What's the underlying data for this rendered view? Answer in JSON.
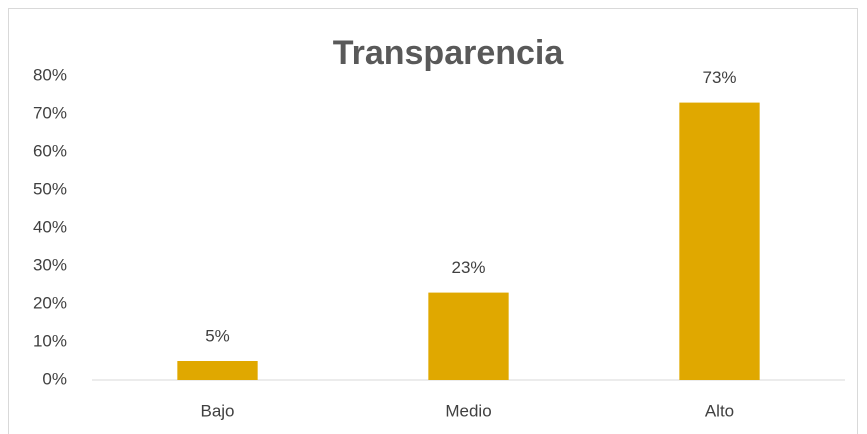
{
  "chart_data": {
    "type": "bar",
    "title": "Transparencia",
    "categories": [
      "Bajo",
      "Medio",
      "Alto"
    ],
    "values": [
      5,
      23,
      73
    ],
    "value_labels": [
      "5%",
      "23%",
      "73%"
    ],
    "color": "#e0a800",
    "ylim": [
      0,
      80
    ],
    "yticks": [
      {
        "value": 0,
        "label": "0%"
      },
      {
        "value": 10,
        "label": "10%"
      },
      {
        "value": 20,
        "label": "20%"
      },
      {
        "value": 30,
        "label": "30%"
      },
      {
        "value": 40,
        "label": "40%"
      },
      {
        "value": 50,
        "label": "50%"
      },
      {
        "value": 60,
        "label": "60%"
      },
      {
        "value": 70,
        "label": "70%"
      },
      {
        "value": 80,
        "label": "80%"
      }
    ],
    "grid": false
  }
}
